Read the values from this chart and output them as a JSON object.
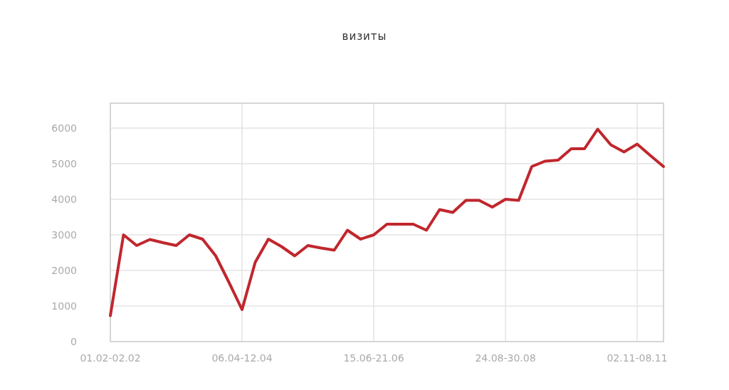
{
  "chart_data": {
    "type": "line",
    "title": "визиты",
    "categories": [
      "01.02-02.02",
      null,
      null,
      null,
      null,
      null,
      null,
      null,
      null,
      null,
      "06.04-12.04",
      null,
      null,
      null,
      null,
      null,
      null,
      null,
      null,
      null,
      "15.06-21.06",
      null,
      null,
      null,
      null,
      null,
      null,
      null,
      null,
      null,
      "24.08-30.08",
      null,
      null,
      null,
      null,
      null,
      null,
      null,
      null,
      null,
      "02.11-08.11",
      null,
      null
    ],
    "series": [
      {
        "color": "#c0272d",
        "values": [
          730,
          3000,
          2700,
          2870,
          2780,
          2700,
          3000,
          2880,
          2410,
          1670,
          900,
          2230,
          2880,
          2670,
          2410,
          2700,
          2630,
          2570,
          3130,
          2880,
          3000,
          3300,
          3300,
          3300,
          3130,
          3710,
          3630,
          3970,
          3970,
          3780,
          4000,
          3970,
          4920,
          5070,
          5100,
          5420,
          5420,
          5970,
          5530,
          5330,
          5550,
          5230,
          4920
        ]
      }
    ],
    "ylim": [
      0,
      6700
    ],
    "yticks": [
      0,
      1000,
      2000,
      3000,
      4000,
      5000,
      6000
    ],
    "grid": true,
    "marker": "none",
    "line_style": "solid"
  }
}
